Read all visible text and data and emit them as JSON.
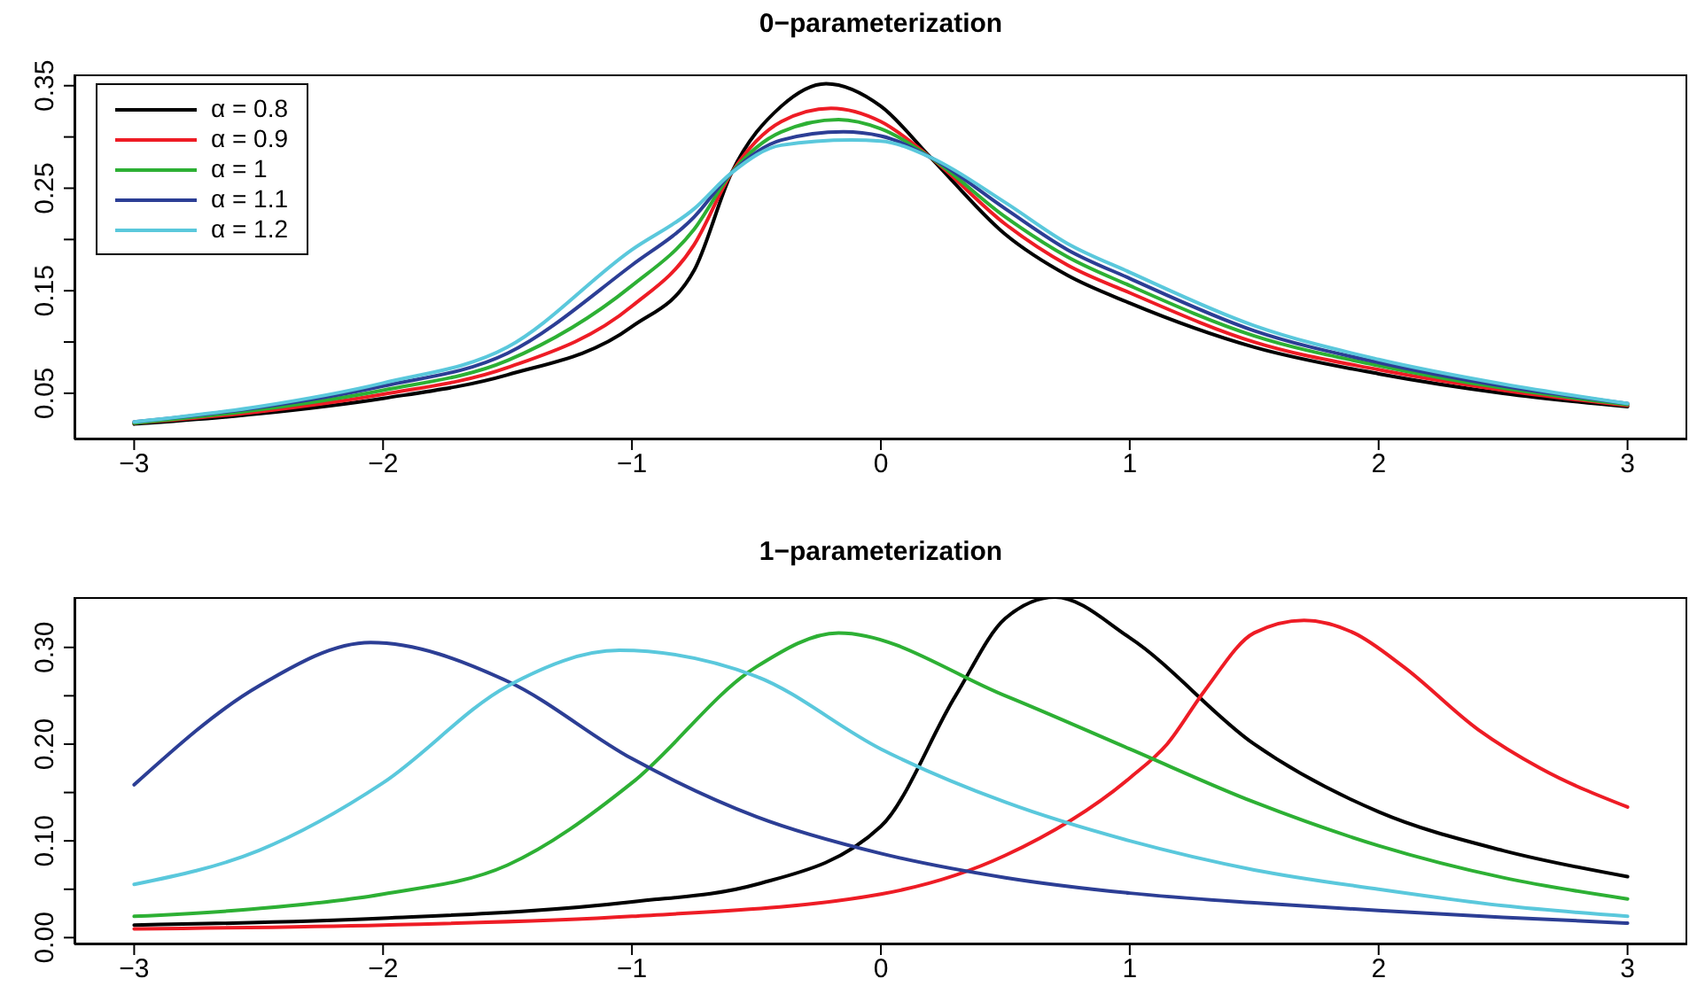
{
  "chart_data": [
    {
      "type": "line",
      "title": "0−parameterization",
      "legend": "top left",
      "xlim": [
        -3.24,
        3.24
      ],
      "xticks": [
        {
          "value": -3,
          "label": "−3"
        },
        {
          "value": -2,
          "label": "−2"
        },
        {
          "value": -1,
          "label": "−1"
        },
        0,
        1,
        2,
        3
      ],
      "ylim": [
        0.005,
        0.361
      ],
      "yticks": [
        {
          "value": 0.05,
          "label": "0.05"
        },
        {
          "value": 0.1,
          "label": null
        },
        {
          "value": 0.15,
          "label": "0.15"
        },
        {
          "value": 0.2,
          "label": null
        },
        {
          "value": 0.25,
          "label": "0.25"
        },
        {
          "value": 0.3,
          "label": null
        },
        {
          "value": 0.35,
          "label": "0.35"
        }
      ],
      "series": [
        {
          "name": "α = 0.8",
          "color": "#000000",
          "x": [
            -3,
            -2.5,
            -2,
            -1.5,
            -1,
            -0.75,
            -0.6,
            -0.4,
            -0.22,
            0,
            0.2,
            0.5,
            0.75,
            1,
            1.5,
            2,
            2.5,
            3
          ],
          "values": [
            0.02,
            0.03,
            0.045,
            0.068,
            0.115,
            0.17,
            0.265,
            0.33,
            0.352,
            0.33,
            0.28,
            0.205,
            0.165,
            0.138,
            0.095,
            0.069,
            0.05,
            0.037
          ]
        },
        {
          "name": "α = 0.9",
          "color": "#ee1c25",
          "x": [
            -3,
            -2.5,
            -2,
            -1.5,
            -1,
            -0.75,
            -0.6,
            -0.4,
            -0.2,
            0,
            0.2,
            0.5,
            0.75,
            1,
            1.5,
            2,
            2.5,
            3
          ],
          "values": [
            0.021,
            0.032,
            0.049,
            0.075,
            0.135,
            0.195,
            0.265,
            0.315,
            0.328,
            0.315,
            0.28,
            0.215,
            0.175,
            0.148,
            0.1,
            0.073,
            0.053,
            0.038
          ]
        },
        {
          "name": "α = 1",
          "color": "#2db034",
          "x": [
            -3,
            -2.5,
            -2,
            -1.5,
            -1,
            -0.75,
            -0.6,
            -0.4,
            -0.17,
            0,
            0.2,
            0.5,
            0.75,
            1,
            1.5,
            2,
            2.5,
            3
          ],
          "values": [
            0.021,
            0.034,
            0.053,
            0.082,
            0.155,
            0.21,
            0.265,
            0.305,
            0.317,
            0.308,
            0.28,
            0.222,
            0.183,
            0.155,
            0.106,
            0.077,
            0.055,
            0.039
          ]
        },
        {
          "name": "α = 1.1",
          "color": "#2c3e95",
          "x": [
            -3,
            -2.5,
            -2,
            -1.5,
            -1,
            -0.75,
            -0.6,
            -0.4,
            -0.15,
            0,
            0.2,
            0.5,
            0.75,
            1,
            1.5,
            2,
            2.5,
            3
          ],
          "values": [
            0.022,
            0.036,
            0.057,
            0.089,
            0.175,
            0.222,
            0.265,
            0.297,
            0.305,
            0.301,
            0.28,
            0.23,
            0.19,
            0.162,
            0.111,
            0.08,
            0.057,
            0.04
          ]
        },
        {
          "name": "α = 1.2",
          "color": "#5ac8dc",
          "x": [
            -3,
            -2.5,
            -2,
            -1.5,
            -1,
            -0.75,
            -0.6,
            -0.4,
            -0.12,
            0,
            0.2,
            0.5,
            0.75,
            1,
            1.5,
            2,
            2.5,
            3
          ],
          "values": [
            0.022,
            0.037,
            0.06,
            0.095,
            0.19,
            0.23,
            0.265,
            0.292,
            0.297,
            0.296,
            0.28,
            0.236,
            0.196,
            0.168,
            0.116,
            0.083,
            0.059,
            0.04
          ]
        }
      ]
    },
    {
      "type": "line",
      "title": "1−parameterization",
      "xlim": [
        -3.24,
        3.24
      ],
      "xticks": [
        {
          "value": -3,
          "label": "−3"
        },
        {
          "value": -2,
          "label": "−2"
        },
        {
          "value": -1,
          "label": "−1"
        },
        0,
        1,
        2,
        3
      ],
      "ylim": [
        -0.007,
        0.352
      ],
      "yticks": [
        {
          "value": 0,
          "label": "0.00"
        },
        {
          "value": 0.05,
          "label": null
        },
        {
          "value": 0.1,
          "label": "0.10"
        },
        {
          "value": 0.15,
          "label": null
        },
        {
          "value": 0.2,
          "label": "0.20"
        },
        {
          "value": 0.25,
          "label": null
        },
        {
          "value": 0.3,
          "label": "0.30"
        }
      ],
      "series": [
        {
          "color": "#000000",
          "x": [
            -3,
            -2,
            -1,
            -0.5,
            0,
            0.3,
            0.5,
            0.7,
            1,
            1.5,
            2,
            2.5,
            3
          ],
          "values": [
            0.013,
            0.02,
            0.037,
            0.055,
            0.115,
            0.25,
            0.33,
            0.352,
            0.31,
            0.2,
            0.13,
            0.09,
            0.063
          ]
        },
        {
          "color": "#ee1c25",
          "x": [
            -3,
            -2,
            -1,
            0,
            0.5,
            1,
            1.15,
            1.3,
            1.5,
            1.7,
            1.9,
            2.1,
            2.4,
            2.65,
            3
          ],
          "values": [
            0.009,
            0.013,
            0.022,
            0.045,
            0.085,
            0.165,
            0.2,
            0.255,
            0.315,
            0.328,
            0.315,
            0.28,
            0.215,
            0.175,
            0.135
          ]
        },
        {
          "color": "#2db034",
          "x": [
            -3,
            -2.5,
            -2,
            -1.5,
            -1,
            -0.5,
            -0.17,
            0.5,
            1,
            1.5,
            2,
            2.5,
            3
          ],
          "values": [
            0.022,
            0.03,
            0.045,
            0.075,
            0.16,
            0.28,
            0.315,
            0.25,
            0.195,
            0.14,
            0.095,
            0.062,
            0.04
          ]
        },
        {
          "color": "#2c3e95",
          "x": [
            -3,
            -2.5,
            -2.05,
            -1.5,
            -1,
            -0.5,
            0,
            0.5,
            1,
            1.5,
            2,
            2.5,
            3
          ],
          "values": [
            0.158,
            0.26,
            0.305,
            0.265,
            0.185,
            0.125,
            0.087,
            0.062,
            0.046,
            0.036,
            0.028,
            0.021,
            0.015
          ]
        },
        {
          "color": "#5ac8dc",
          "x": [
            -3,
            -2.5,
            -2,
            -1.5,
            -1.05,
            -0.5,
            0,
            0.5,
            1,
            1.5,
            2,
            2.5,
            3
          ],
          "values": [
            0.055,
            0.09,
            0.16,
            0.26,
            0.297,
            0.27,
            0.195,
            0.14,
            0.1,
            0.07,
            0.05,
            0.033,
            0.022
          ]
        }
      ]
    }
  ]
}
